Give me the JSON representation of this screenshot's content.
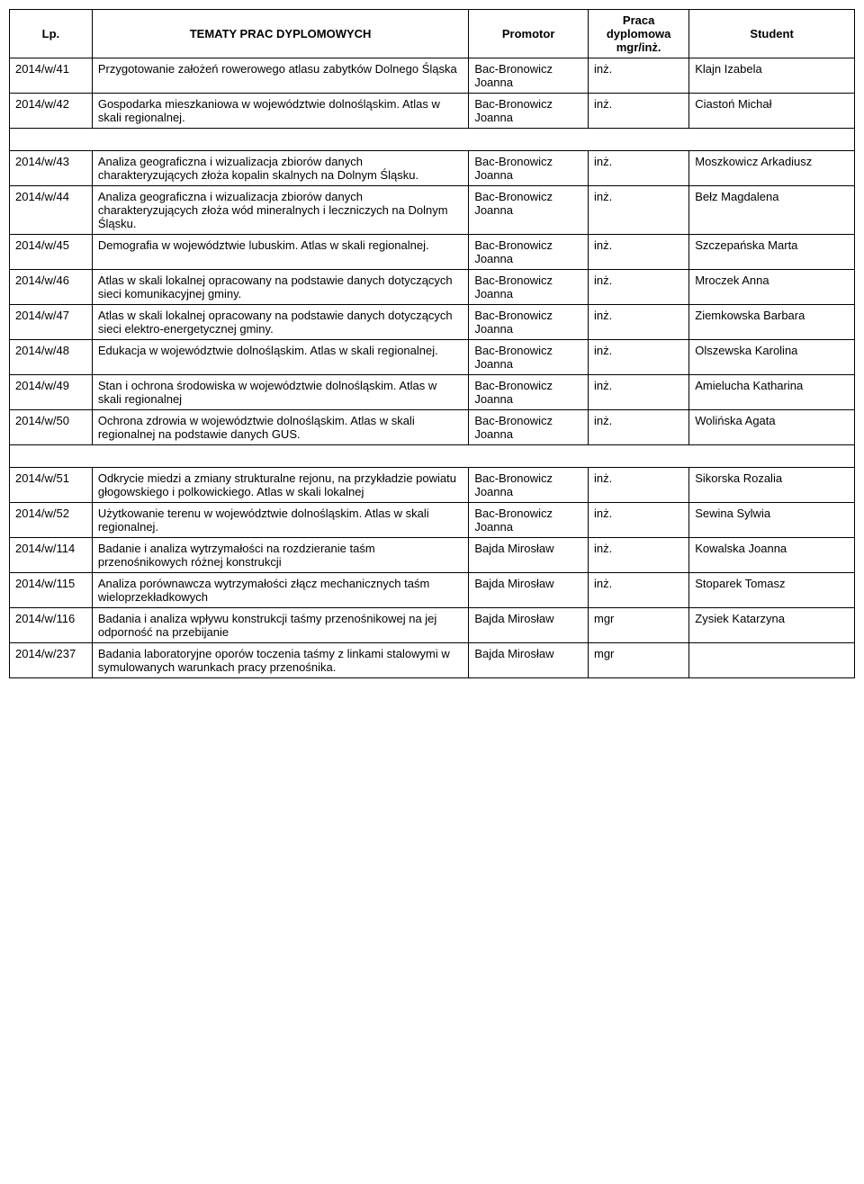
{
  "table": {
    "headers": {
      "lp": "Lp.",
      "temat": "TEMATY PRAC DYPLOMOWYCH",
      "promotor": "Promotor",
      "praca": "Praca dyplomowa mgr/inż.",
      "student": "Student"
    },
    "rows": [
      {
        "lp": "2014/w/41",
        "temat": "Przygotowanie założeń rowerowego atlasu zabytków Dolnego Śląska",
        "promotor": "Bac-Bronowicz Joanna",
        "praca": "inż.",
        "student": "Klajn Izabela"
      },
      {
        "lp": "2014/w/42",
        "temat": "Gospodarka mieszkaniowa w województwie dolnośląskim. Atlas w skali regionalnej.",
        "promotor": "Bac-Bronowicz Joanna",
        "praca": "inż.",
        "student": "Ciastoń Michał"
      },
      {
        "lp": "2014/w/43",
        "temat": "Analiza geograficzna i wizualizacja zbiorów danych charakteryzujących złoża kopalin skalnych na Dolnym Śląsku.",
        "promotor": "Bac-Bronowicz Joanna",
        "praca": "inż.",
        "student": "Moszkowicz Arkadiusz"
      },
      {
        "lp": "2014/w/44",
        "temat": "Analiza geograficzna i wizualizacja zbiorów danych charakteryzujących złoża wód mineralnych i leczniczych na Dolnym Śląsku.",
        "promotor": "Bac-Bronowicz Joanna",
        "praca": "inż.",
        "student": "Bełz Magdalena"
      },
      {
        "lp": "2014/w/45",
        "temat": "Demografia w województwie lubuskim. Atlas w skali regionalnej.",
        "promotor": "Bac-Bronowicz Joanna",
        "praca": "inż.",
        "student": "Szczepańska Marta"
      },
      {
        "lp": "2014/w/46",
        "temat": "Atlas w skali lokalnej opracowany na podstawie danych dotyczących sieci komunikacyjnej gminy.",
        "promotor": "Bac-Bronowicz Joanna",
        "praca": "inż.",
        "student": "Mroczek Anna"
      },
      {
        "lp": "2014/w/47",
        "temat": "Atlas w skali lokalnej opracowany na podstawie danych dotyczących sieci elektro-energetycznej gminy.",
        "promotor": "Bac-Bronowicz Joanna",
        "praca": "inż.",
        "student": "Ziemkowska Barbara"
      },
      {
        "lp": "2014/w/48",
        "temat": "Edukacja w województwie dolnośląskim. Atlas w skali regionalnej.",
        "promotor": "Bac-Bronowicz Joanna",
        "praca": "inż.",
        "student": "Olszewska Karolina"
      },
      {
        "lp": "2014/w/49",
        "temat": "Stan i ochrona środowiska w województwie dolnośląskim. Atlas w skali regionalnej",
        "promotor": "Bac-Bronowicz Joanna",
        "praca": "inż.",
        "student": "Amielucha Katharina"
      },
      {
        "lp": "2014/w/50",
        "temat": "Ochrona zdrowia w województwie dolnośląskim. Atlas w skali regionalnej na podstawie danych GUS.",
        "promotor": "Bac-Bronowicz Joanna",
        "praca": "inż.",
        "student": "Wolińska Agata"
      },
      {
        "lp": "2014/w/51",
        "temat": "Odkrycie miedzi a zmiany strukturalne rejonu, na przykładzie powiatu głogowskiego i polkowickiego. Atlas w skali lokalnej",
        "promotor": "Bac-Bronowicz Joanna",
        "praca": "inż.",
        "student": "Sikorska Rozalia"
      },
      {
        "lp": "2014/w/52",
        "temat": "Użytkowanie terenu  w województwie dolnośląskim. Atlas w skali regionalnej.",
        "promotor": "Bac-Bronowicz Joanna",
        "praca": "inż.",
        "student": "Sewina Sylwia"
      },
      {
        "lp": "2014/w/114",
        "temat": "Badanie i analiza wytrzymałości na rozdzieranie taśm przenośnikowych różnej konstrukcji",
        "promotor": "Bajda Mirosław",
        "praca": "inż.",
        "student": "Kowalska Joanna"
      },
      {
        "lp": "2014/w/115",
        "temat": "Analiza porównawcza wytrzymałości złącz mechanicznych taśm wieloprzekładkowych",
        "promotor": "Bajda Mirosław",
        "praca": "inż.",
        "student": "Stoparek Tomasz"
      },
      {
        "lp": "2014/w/116",
        "temat": "Badania i analiza wpływu konstrukcji taśmy przenośnikowej na jej odporność na przebijanie",
        "promotor": "Bajda Mirosław",
        "praca": "mgr",
        "student": "Zysiek Katarzyna"
      },
      {
        "lp": "2014/w/237",
        "temat": "Badania laboratoryjne oporów toczenia taśmy z linkami stalowymi w symulowanych warunkach pracy przenośnika.",
        "promotor": "Bajda Mirosław",
        "praca": "mgr",
        "student": ""
      }
    ],
    "spacerAfter": [
      1,
      9
    ]
  }
}
